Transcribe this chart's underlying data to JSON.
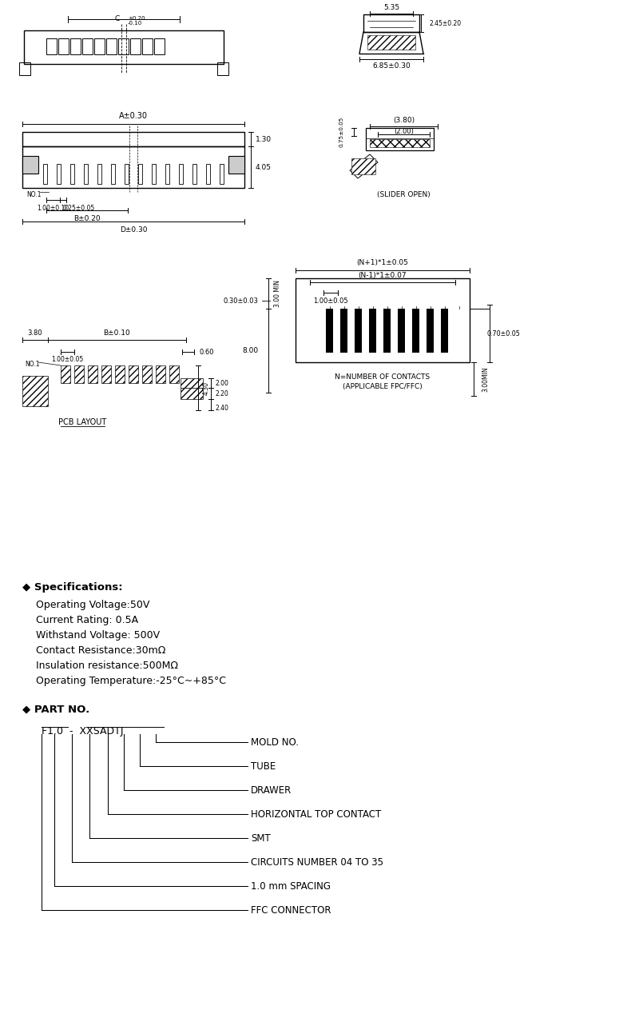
{
  "bg_color": "#ffffff",
  "line_color": "#000000",
  "specs_title": "◆ Specifications:",
  "specs_lines": [
    "Operating Voltage:50V",
    "Current Rating: 0.5A",
    "Withstand Voltage: 500V",
    "Contact Resistance:30mΩ",
    "Insulation resistance:500MΩ",
    "Operating Temperature:-25°C~+85°C"
  ],
  "part_no_title": "◆ PART NO.",
  "part_no_code": "F1.0  -  XXSADTJ",
  "part_no_labels": [
    "MOLD NO.",
    "TUBE",
    "DRAWER",
    "HORIZONTAL TOP CONTACT",
    "SMT",
    "CIRCUITS NUMBER 04 TO 35",
    "1.0 mm SPACING",
    "FFC CONNECTOR"
  ],
  "pcb_layout_label": "PCB LAYOUT"
}
